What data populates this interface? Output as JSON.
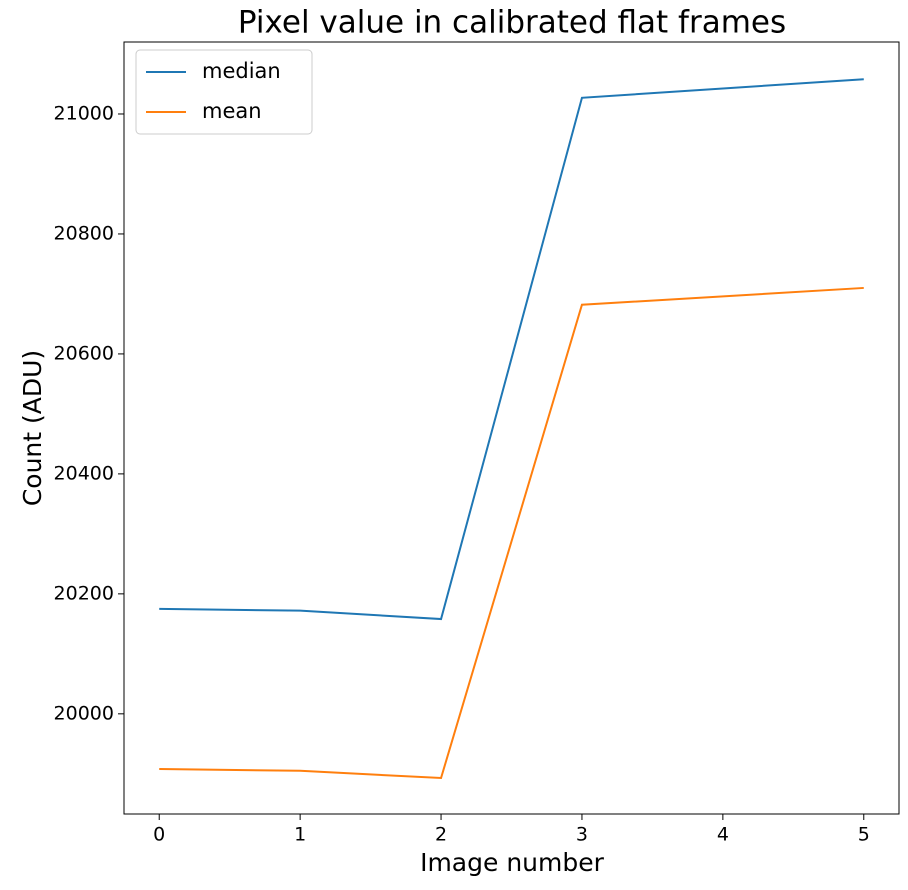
{
  "chart_data": {
    "type": "line",
    "title": "Pixel value in calibrated flat frames",
    "x_label": "Image number",
    "y_label": "Count (ADU)",
    "x": [
      0,
      1,
      2,
      3,
      4,
      5
    ],
    "series": [
      {
        "name": "median",
        "color": "#1f77b4",
        "values": [
          20175,
          20172,
          20158,
          21027,
          null,
          21058
        ]
      },
      {
        "name": "mean",
        "color": "#ff7f0e",
        "values": [
          19908,
          19905,
          19893,
          20682,
          null,
          20710
        ]
      }
    ],
    "xlim": [
      -0.25,
      5.25
    ],
    "xticks": [
      0,
      1,
      2,
      3,
      4,
      5
    ],
    "ylim": [
      19833,
      21120
    ],
    "yticks": [
      20000,
      20200,
      20400,
      20600,
      20800,
      21000
    ],
    "legend": "upper left",
    "grid": false
  }
}
